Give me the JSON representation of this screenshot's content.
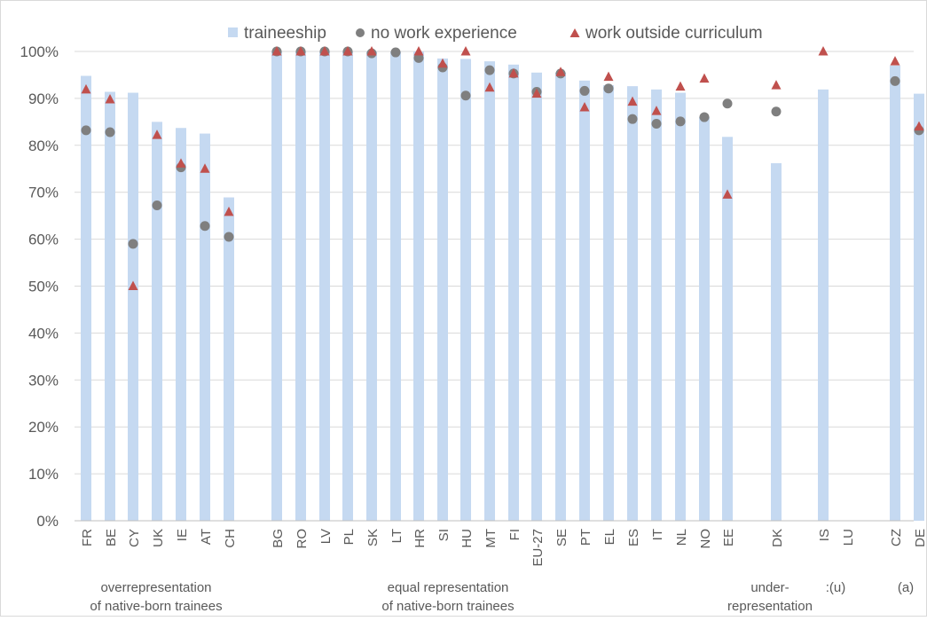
{
  "chart_data": {
    "type": "bar",
    "title": "",
    "xlabel": "",
    "ylabel": "",
    "ylim": [
      0,
      100
    ],
    "y_ticks": [
      "0%",
      "10%",
      "20%",
      "30%",
      "40%",
      "50%",
      "60%",
      "70%",
      "80%",
      "90%",
      "100%"
    ],
    "grid": true,
    "legend_position": "top",
    "categories": [
      "FR",
      "BE",
      "CY",
      "UK",
      "IE",
      "AT",
      "CH",
      "BG",
      "RO",
      "LV",
      "PL",
      "SK",
      "LT",
      "HR",
      "SI",
      "HU",
      "MT",
      "FI",
      "EU-27",
      "SE",
      "PT",
      "EL",
      "ES",
      "IT",
      "NL",
      "NO",
      "EE",
      "DK",
      "IS",
      "LU",
      "CZ",
      "DE"
    ],
    "series": [
      {
        "name": "traineeship",
        "mark": "bar",
        "color": "#c5d9f1",
        "values": [
          94.8,
          91.4,
          91.2,
          85.0,
          83.7,
          82.5,
          68.9,
          100,
          100,
          100,
          100,
          100,
          100,
          100,
          98.5,
          98.4,
          97.9,
          97.2,
          95.5,
          95.5,
          93.8,
          92.8,
          92.6,
          91.9,
          91.2,
          86.0,
          81.8,
          76.2,
          91.9,
          null,
          97.0,
          91.0
        ]
      },
      {
        "name": "no work experience",
        "mark": "circle",
        "color": "#7f7f7f",
        "values": [
          83.2,
          82.8,
          59.0,
          67.2,
          75.3,
          62.8,
          60.5,
          100,
          100,
          100,
          100,
          99.6,
          99.8,
          98.6,
          96.6,
          90.6,
          96.0,
          95.3,
          91.4,
          95.3,
          91.6,
          92.1,
          85.6,
          84.6,
          85.1,
          86.0,
          88.9,
          87.2,
          null,
          null,
          93.7,
          83.2
        ]
      },
      {
        "name": "work outside curriculum",
        "mark": "triangle",
        "color": "#c0504d",
        "values": [
          91.9,
          89.8,
          50.0,
          82.2,
          76.1,
          75.0,
          65.8,
          100,
          100,
          100,
          100,
          100,
          null,
          100,
          97.4,
          100,
          92.3,
          95.3,
          91.0,
          95.6,
          88.1,
          94.6,
          89.3,
          87.3,
          92.5,
          94.2,
          69.5,
          92.8,
          100,
          null,
          97.9,
          84.0
        ]
      }
    ],
    "group_labels": [
      {
        "line1": "overrepresentation",
        "line2": "of native-born trainees"
      },
      {
        "line1": "equal representation",
        "line2": "of native-born trainees"
      },
      {
        "line1": "under-",
        "line2": "representation"
      },
      {
        "line1": ":(u)",
        "line2": ""
      },
      {
        "line1": "(a)",
        "line2": ""
      }
    ]
  }
}
